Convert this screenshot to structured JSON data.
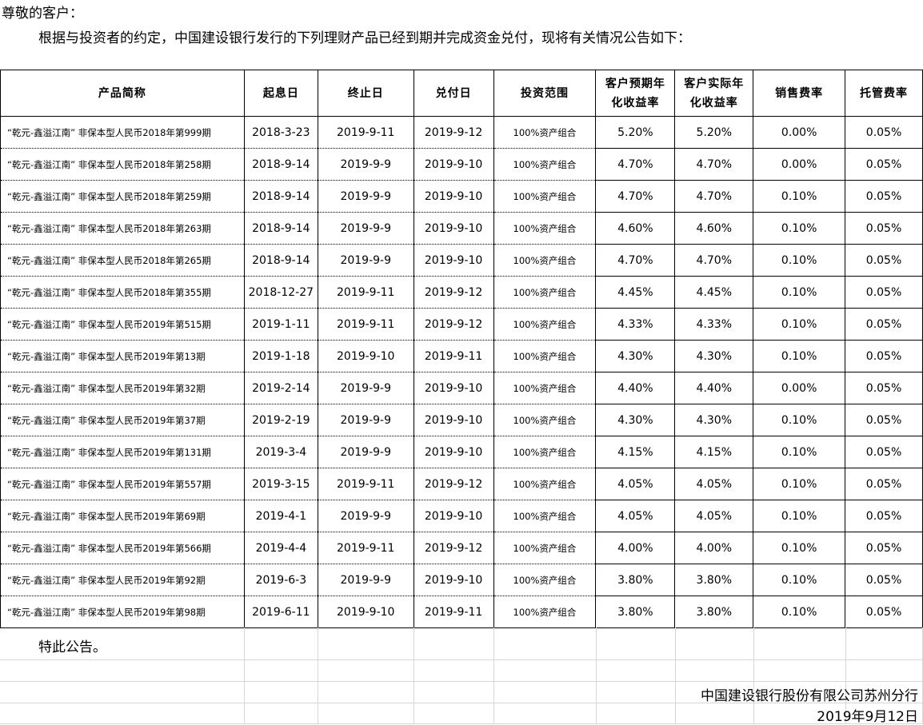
{
  "greeting": "尊敬的客户：",
  "intro": "根据与投资者的约定，中国建设银行发行的下列理财产品已经到期并完成资金兑付，现将有关情况公告如下：",
  "table": {
    "headers": [
      "产品简称",
      "起息日",
      "终止日",
      "兑付日",
      "投资范围",
      "客户预期年化收益率",
      "客户实际年化收益率",
      "销售费率",
      "托管费率"
    ],
    "header_lines": {
      "expected": [
        "客户预期年",
        "化收益率"
      ],
      "actual": [
        "客户实际年",
        "化收益率"
      ]
    },
    "rows": [
      [
        "“乾元-鑫溢江南” 非保本型人民币2018年第999期",
        "2018-3-23",
        "2019-9-11",
        "2019-9-12",
        "100%资产组合",
        "5.20%",
        "5.20%",
        "0.00%",
        "0.05%"
      ],
      [
        "“乾元-鑫溢江南” 非保本型人民币2018年第258期",
        "2018-9-14",
        "2019-9-9",
        "2019-9-10",
        "100%资产组合",
        "4.70%",
        "4.70%",
        "0.00%",
        "0.05%"
      ],
      [
        "“乾元-鑫溢江南” 非保本型人民币2018年第259期",
        "2018-9-14",
        "2019-9-9",
        "2019-9-10",
        "100%资产组合",
        "4.70%",
        "4.70%",
        "0.10%",
        "0.05%"
      ],
      [
        "“乾元-鑫溢江南” 非保本型人民币2018年第263期",
        "2018-9-14",
        "2019-9-9",
        "2019-9-10",
        "100%资产组合",
        "4.60%",
        "4.60%",
        "0.10%",
        "0.05%"
      ],
      [
        "“乾元-鑫溢江南” 非保本型人民币2018年第265期",
        "2018-9-14",
        "2019-9-9",
        "2019-9-10",
        "100%资产组合",
        "4.70%",
        "4.70%",
        "0.10%",
        "0.05%"
      ],
      [
        "“乾元-鑫溢江南” 非保本型人民币2018年第355期",
        "2018-12-27",
        "2019-9-11",
        "2019-9-12",
        "100%资产组合",
        "4.45%",
        "4.45%",
        "0.10%",
        "0.05%"
      ],
      [
        "“乾元-鑫溢江南” 非保本型人民币2019年第515期",
        "2019-1-11",
        "2019-9-11",
        "2019-9-12",
        "100%资产组合",
        "4.33%",
        "4.33%",
        "0.10%",
        "0.05%"
      ],
      [
        "“乾元-鑫溢江南” 非保本型人民币2019年第13期",
        "2019-1-18",
        "2019-9-10",
        "2019-9-11",
        "100%资产组合",
        "4.30%",
        "4.30%",
        "0.10%",
        "0.05%"
      ],
      [
        "“乾元-鑫溢江南” 非保本型人民币2019年第32期",
        "2019-2-14",
        "2019-9-9",
        "2019-9-10",
        "100%资产组合",
        "4.40%",
        "4.40%",
        "0.00%",
        "0.05%"
      ],
      [
        "“乾元-鑫溢江南” 非保本型人民币2019年第37期",
        "2019-2-19",
        "2019-9-9",
        "2019-9-10",
        "100%资产组合",
        "4.30%",
        "4.30%",
        "0.10%",
        "0.05%"
      ],
      [
        "“乾元-鑫溢江南” 非保本型人民币2019年第131期",
        "2019-3-4",
        "2019-9-9",
        "2019-9-10",
        "100%资产组合",
        "4.15%",
        "4.15%",
        "0.10%",
        "0.05%"
      ],
      [
        "“乾元-鑫溢江南” 非保本型人民币2019年第557期",
        "2019-3-15",
        "2019-9-11",
        "2019-9-12",
        "100%资产组合",
        "4.05%",
        "4.05%",
        "0.10%",
        "0.05%"
      ],
      [
        "“乾元-鑫溢江南” 非保本型人民币2019年第69期",
        "2019-4-1",
        "2019-9-9",
        "2019-9-10",
        "100%资产组合",
        "4.05%",
        "4.05%",
        "0.10%",
        "0.05%"
      ],
      [
        "“乾元-鑫溢江南” 非保本型人民币2019年第566期",
        "2019-4-4",
        "2019-9-11",
        "2019-9-12",
        "100%资产组合",
        "4.00%",
        "4.00%",
        "0.10%",
        "0.05%"
      ],
      [
        "“乾元-鑫溢江南” 非保本型人民币2019年第92期",
        "2019-6-3",
        "2019-9-9",
        "2019-9-10",
        "100%资产组合",
        "3.80%",
        "3.80%",
        "0.10%",
        "0.05%"
      ],
      [
        "“乾元-鑫溢江南” 非保本型人民币2019年第98期",
        "2019-6-11",
        "2019-9-10",
        "2019-9-11",
        "100%资产组合",
        "3.80%",
        "3.80%",
        "0.10%",
        "0.05%"
      ]
    ]
  },
  "closing": "特此公告。",
  "organization": "中国建设银行股份有限公司苏州分行",
  "date": "2019年9月12日"
}
